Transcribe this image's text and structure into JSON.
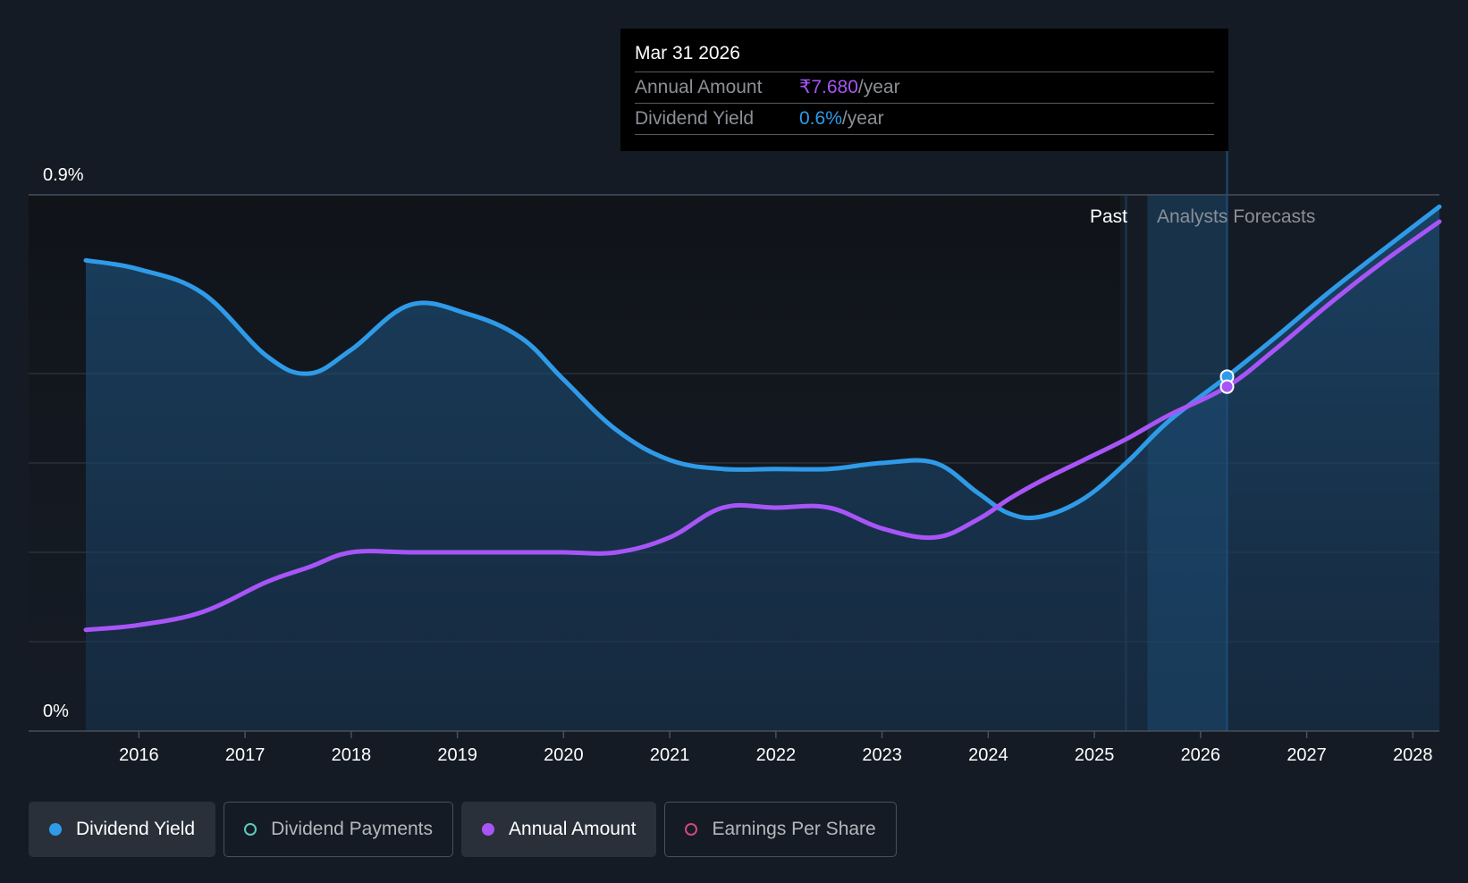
{
  "tooltip": {
    "date": "Mar 31 2026",
    "rows": [
      {
        "label": "Annual Amount",
        "value": "₹7.680",
        "unit": "/year",
        "color": "#a855f7"
      },
      {
        "label": "Dividend Yield",
        "value": "0.6%",
        "unit": "/year",
        "color": "#2f9be8"
      }
    ]
  },
  "regions": {
    "past_label": "Past",
    "forecast_label": "Analysts Forecasts"
  },
  "legend": [
    {
      "label": "Dividend Yield",
      "color": "#2f9be8",
      "active": true,
      "filled": true
    },
    {
      "label": "Dividend Payments",
      "color": "#5ec9c0",
      "active": false,
      "filled": false
    },
    {
      "label": "Annual Amount",
      "color": "#a855f7",
      "active": true,
      "filled": true
    },
    {
      "label": "Earnings Per Share",
      "color": "#d04a7c",
      "active": false,
      "filled": false
    }
  ],
  "chart_data": {
    "type": "line",
    "y_axis": {
      "top_label": "0.9%",
      "bottom_label": "0%",
      "range": [
        0,
        0.9
      ]
    },
    "x_axis": {
      "ticks": [
        "2016",
        "2017",
        "2018",
        "2019",
        "2020",
        "2021",
        "2022",
        "2023",
        "2024",
        "2025",
        "2026",
        "2027",
        "2028"
      ],
      "range": [
        2015.5,
        2028.25
      ]
    },
    "forecast_start": 2025.5,
    "highlight_x": 2026.25,
    "series": [
      {
        "name": "Dividend Yield",
        "color": "#2f9be8",
        "area": true,
        "points": [
          [
            2015.5,
            0.79
          ],
          [
            2016.0,
            0.775
          ],
          [
            2016.6,
            0.735
          ],
          [
            2017.2,
            0.63
          ],
          [
            2017.6,
            0.6
          ],
          [
            2018.0,
            0.64
          ],
          [
            2018.55,
            0.715
          ],
          [
            2019.1,
            0.7
          ],
          [
            2019.6,
            0.66
          ],
          [
            2020.0,
            0.59
          ],
          [
            2020.5,
            0.505
          ],
          [
            2021.0,
            0.455
          ],
          [
            2021.5,
            0.44
          ],
          [
            2022.0,
            0.44
          ],
          [
            2022.5,
            0.44
          ],
          [
            2023.0,
            0.45
          ],
          [
            2023.5,
            0.45
          ],
          [
            2023.9,
            0.4
          ],
          [
            2024.2,
            0.365
          ],
          [
            2024.5,
            0.36
          ],
          [
            2024.9,
            0.39
          ],
          [
            2025.3,
            0.45
          ],
          [
            2025.7,
            0.52
          ],
          [
            2026.25,
            0.595
          ],
          [
            2026.7,
            0.66
          ],
          [
            2027.2,
            0.735
          ],
          [
            2027.7,
            0.805
          ],
          [
            2028.25,
            0.88
          ]
        ]
      },
      {
        "name": "Annual Amount",
        "color": "#a855f7",
        "area": false,
        "points": [
          [
            2015.5,
            0.17
          ],
          [
            2016.0,
            0.178
          ],
          [
            2016.6,
            0.2
          ],
          [
            2017.2,
            0.25
          ],
          [
            2017.6,
            0.275
          ],
          [
            2018.0,
            0.3
          ],
          [
            2018.55,
            0.3
          ],
          [
            2019.1,
            0.3
          ],
          [
            2019.6,
            0.3
          ],
          [
            2020.0,
            0.3
          ],
          [
            2020.5,
            0.3
          ],
          [
            2021.0,
            0.325
          ],
          [
            2021.5,
            0.375
          ],
          [
            2022.0,
            0.375
          ],
          [
            2022.5,
            0.375
          ],
          [
            2023.0,
            0.34
          ],
          [
            2023.5,
            0.325
          ],
          [
            2023.9,
            0.355
          ],
          [
            2024.2,
            0.39
          ],
          [
            2024.5,
            0.42
          ],
          [
            2024.9,
            0.455
          ],
          [
            2025.3,
            0.49
          ],
          [
            2025.7,
            0.53
          ],
          [
            2026.25,
            0.578
          ],
          [
            2026.7,
            0.64
          ],
          [
            2027.2,
            0.715
          ],
          [
            2027.7,
            0.785
          ],
          [
            2028.25,
            0.855
          ]
        ]
      }
    ]
  }
}
